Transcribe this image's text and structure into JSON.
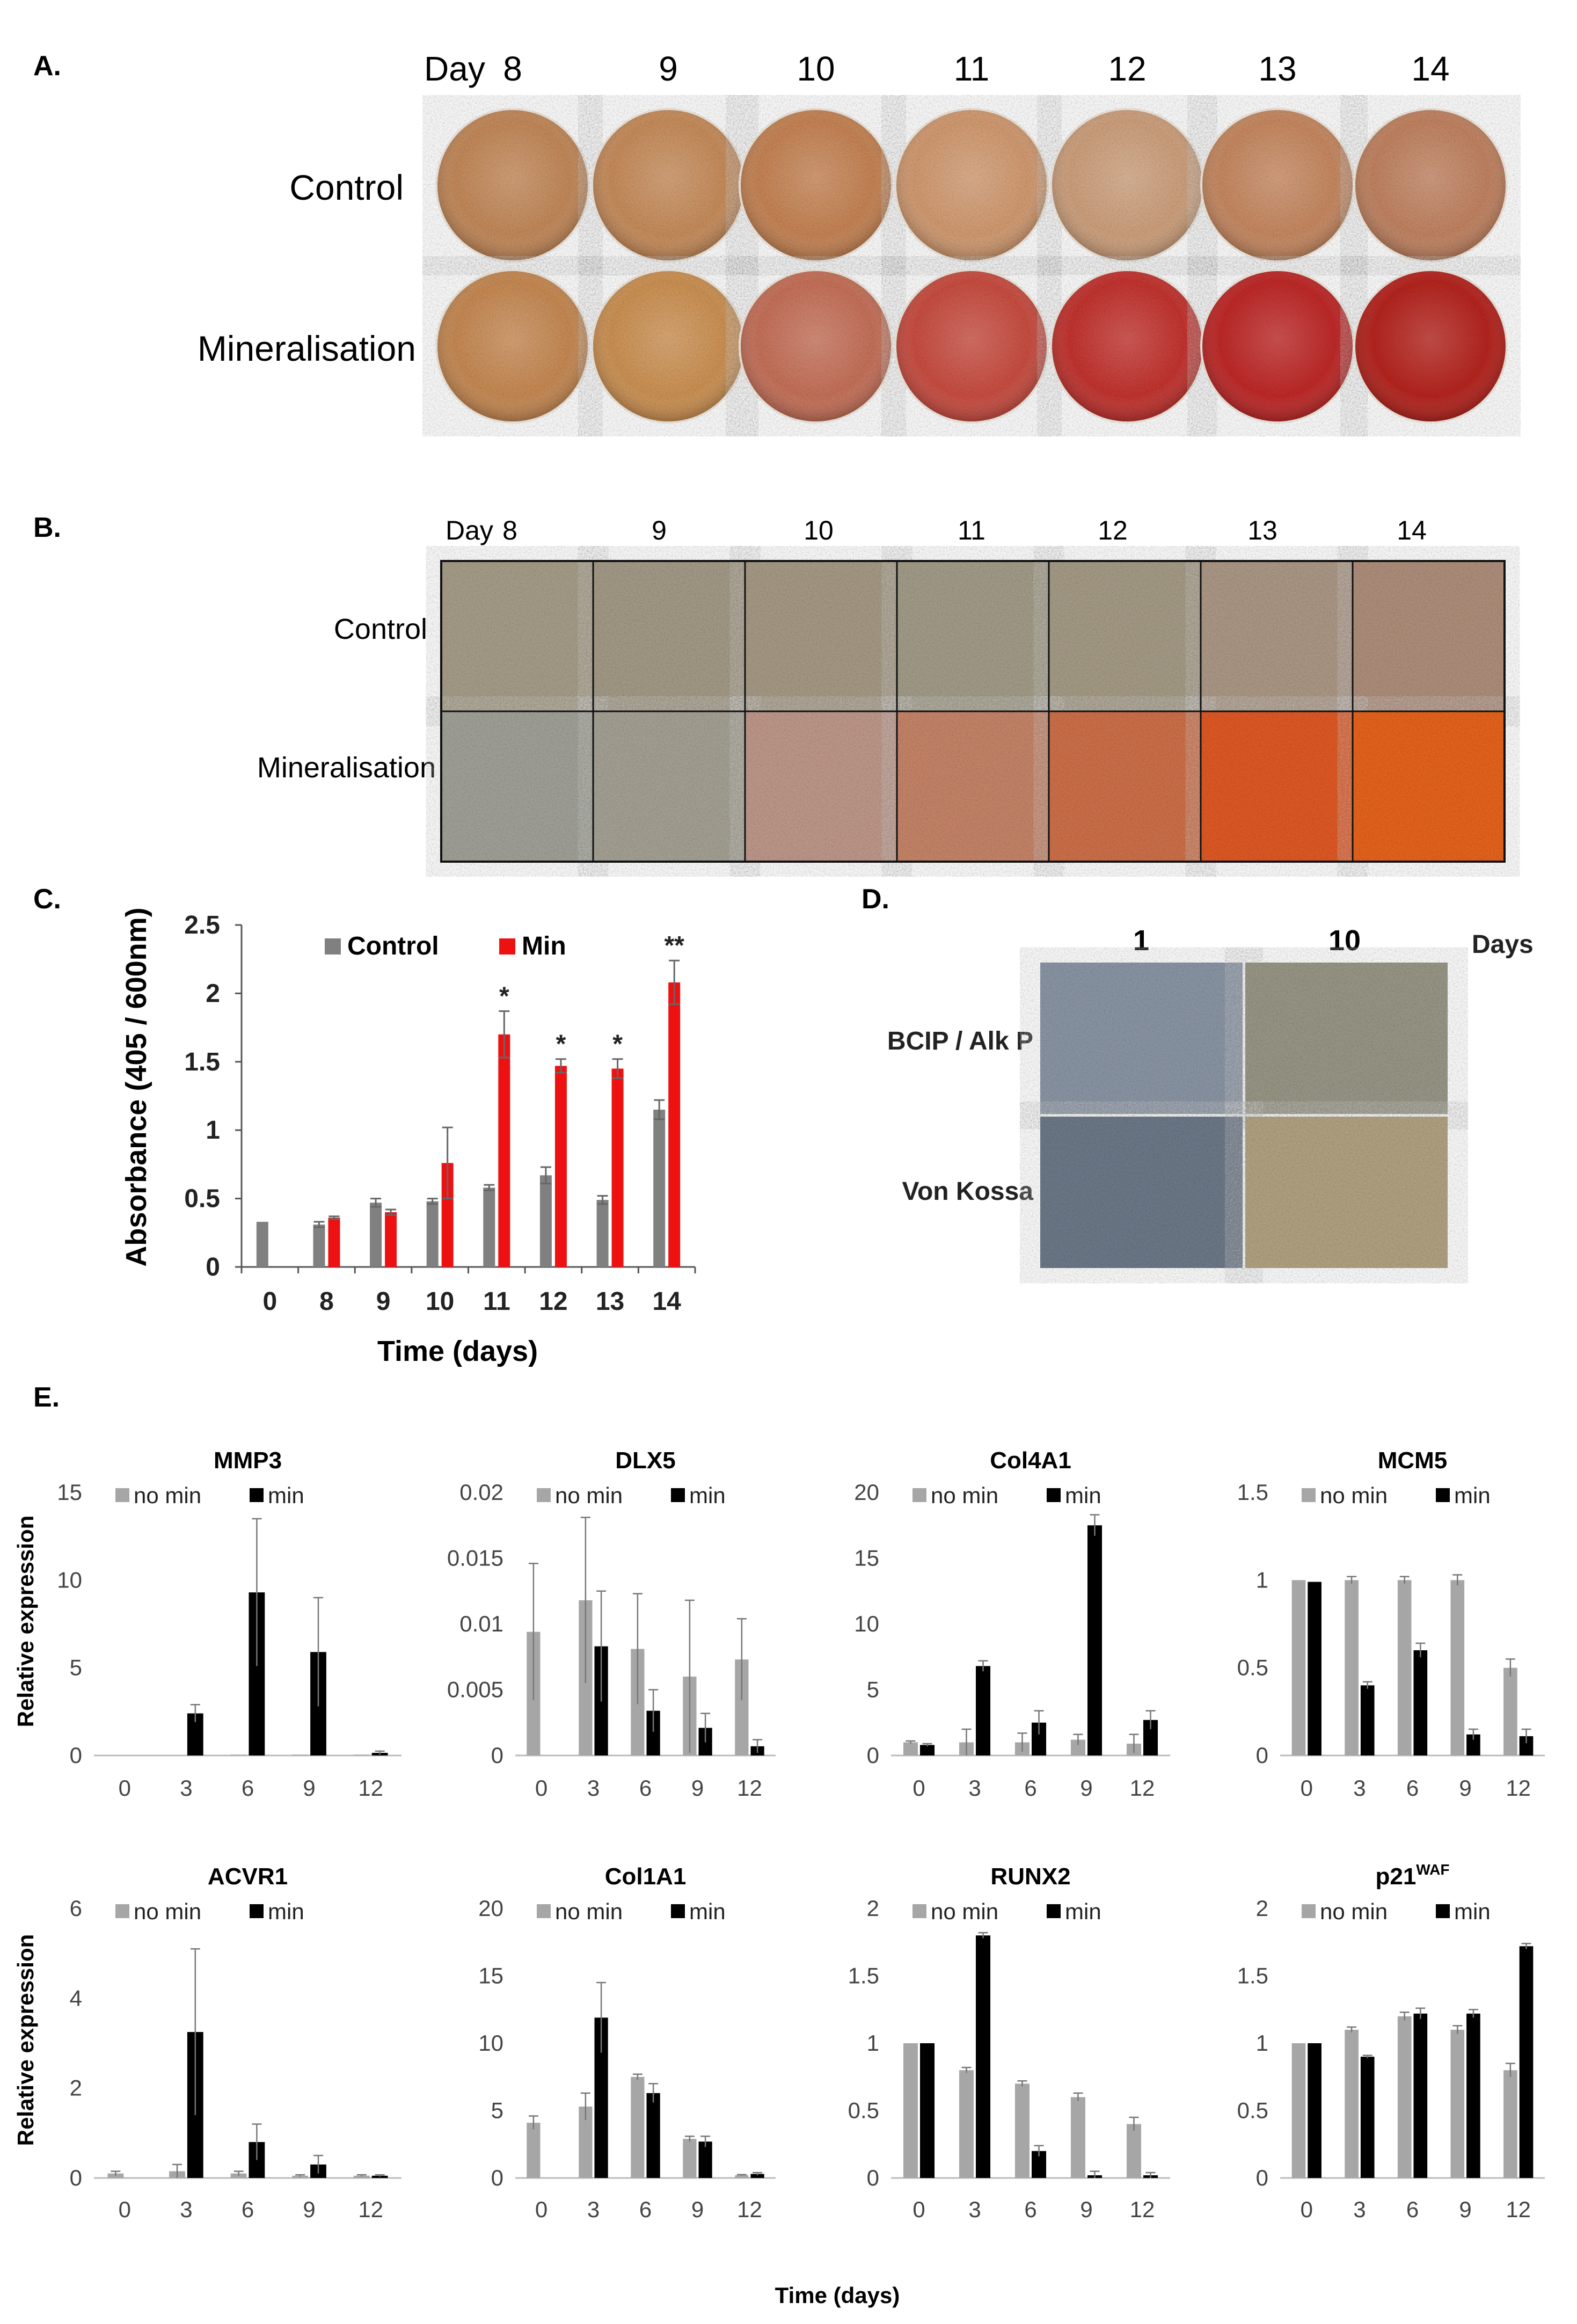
{
  "panel_a": {
    "letter": "A.",
    "day_prefix": "Day",
    "days": [
      "8",
      "9",
      "10",
      "11",
      "12",
      "13",
      "14"
    ],
    "rows": [
      "Control",
      "Mineralisation"
    ],
    "colors": {
      "Control": [
        "#c58a5a",
        "#c98e5c",
        "#c88555",
        "#d49c72",
        "#d0a27e",
        "#c98a62",
        "#c38462"
      ],
      "Mineralisation": [
        "#c98b54",
        "#cf9354",
        "#c8725a",
        "#cb4e42",
        "#c53430",
        "#c12a28",
        "#b82420"
      ]
    }
  },
  "panel_b": {
    "letter": "B.",
    "day_prefix": "Day",
    "days": [
      "8",
      "9",
      "10",
      "11",
      "12",
      "13",
      "14"
    ],
    "rows": [
      "Control",
      "Mineralisation"
    ],
    "colors": {
      "Control": [
        "#a89f8a",
        "#a59c88",
        "#a89c86",
        "#a49e8a",
        "#a79d88",
        "#ae9a88",
        "#b0907c"
      ],
      "Mineralisation": [
        "#a3a39a",
        "#a7a396",
        "#c09a8c",
        "#c8866a",
        "#d0714a",
        "#e25a26",
        "#e8651c"
      ]
    }
  },
  "panel_d": {
    "letter": "D.",
    "columns": [
      "1",
      "10"
    ],
    "days_label": "Days",
    "rows": [
      "BCIP / Alk P",
      "Von Kossa"
    ],
    "colors": [
      [
        "#8c97a6",
        "#9a9887"
      ],
      [
        "#6e7a8a",
        "#b3a483"
      ]
    ]
  },
  "chart_data": [
    {
      "id": "C",
      "letter": "C.",
      "type": "bar",
      "title": "",
      "xlabel": "Time (days)",
      "ylabel": "Absorbance (405 / 600nm)",
      "ylim": [
        0,
        2.5
      ],
      "yticks": [
        "0",
        "0.5",
        "1",
        "1.5",
        "2",
        "2.5"
      ],
      "categories": [
        "0",
        "8",
        "9",
        "10",
        "11",
        "12",
        "13",
        "14"
      ],
      "legend_position": "top",
      "significance": [
        "",
        "",
        "",
        "",
        "*",
        "*",
        "*",
        "**"
      ],
      "series": [
        {
          "name": "Control",
          "color": "#808080",
          "values": [
            0.33,
            0.31,
            0.47,
            0.48,
            0.58,
            0.67,
            0.49,
            1.15
          ],
          "errors": [
            0.0,
            0.02,
            0.03,
            0.02,
            0.02,
            0.06,
            0.03,
            0.07
          ]
        },
        {
          "name": "Min",
          "color": "#ee1111",
          "values": [
            null,
            0.36,
            0.4,
            0.76,
            1.7,
            1.47,
            1.45,
            2.08
          ],
          "errors": [
            0,
            0.01,
            0.02,
            0.26,
            0.17,
            0.05,
            0.07,
            0.16
          ]
        }
      ]
    },
    {
      "id": "E",
      "letter": "E.",
      "xlabel": "Time (days)",
      "ylabel": "Relative expression",
      "categories": [
        "0",
        "3",
        "6",
        "9",
        "12"
      ],
      "series_names": [
        "no min",
        "min"
      ],
      "colors": [
        "#a6a6a6",
        "#000000"
      ],
      "subplots": [
        {
          "type": "bar",
          "title": "MMP3",
          "title_sup": "",
          "ylim": [
            0,
            15
          ],
          "yticks": [
            "0",
            "5",
            "10",
            "15"
          ],
          "values": [
            [
              0,
              0,
              0.05,
              0.05,
              0.05
            ],
            [
              0,
              2.4,
              9.3,
              5.9,
              0.15
            ]
          ],
          "errors": [
            [
              0,
              0,
              0,
              0,
              0
            ],
            [
              0,
              0.5,
              4.2,
              3.1,
              0.1
            ]
          ]
        },
        {
          "type": "bar",
          "title": "DLX5",
          "title_sup": "",
          "ylim": [
            0,
            0.02
          ],
          "yticks": [
            "0",
            "0.005",
            "0.01",
            "0.015",
            "0.02"
          ],
          "values": [
            [
              0.0094,
              0.0118,
              0.0081,
              0.006,
              0.0073
            ],
            [
              0,
              0.0083,
              0.0034,
              0.0021,
              0.0007
            ]
          ],
          "errors": [
            [
              0.0052,
              0.0063,
              0.0042,
              0.0058,
              0.0031
            ],
            [
              0,
              0.0042,
              0.0016,
              0.0011,
              0.0005
            ]
          ]
        },
        {
          "type": "bar",
          "title": "Col4A1",
          "title_sup": "",
          "ylim": [
            0,
            20
          ],
          "yticks": [
            "0",
            "5",
            "10",
            "15",
            "20"
          ],
          "values": [
            [
              1.0,
              1.0,
              1.0,
              1.2,
              0.9
            ],
            [
              0.8,
              6.8,
              2.5,
              17.5,
              2.7
            ]
          ],
          "errors": [
            [
              0.1,
              1.0,
              0.7,
              0.4,
              0.7
            ],
            [
              0.1,
              0.4,
              0.9,
              0.8,
              0.7
            ]
          ]
        },
        {
          "type": "bar",
          "title": "MCM5",
          "title_sup": "",
          "ylim": [
            0,
            1.5
          ],
          "yticks": [
            "0",
            "0.5",
            "1",
            "1.5"
          ],
          "values": [
            [
              1.0,
              1.0,
              1.0,
              1.0,
              0.5
            ],
            [
              0.99,
              0.4,
              0.6,
              0.12,
              0.11
            ]
          ],
          "errors": [
            [
              0,
              0.02,
              0.02,
              0.03,
              0.05
            ],
            [
              0,
              0.02,
              0.04,
              0.03,
              0.04
            ]
          ]
        },
        {
          "type": "bar",
          "title": "ACVR1",
          "title_sup": "",
          "ylim": [
            0,
            6
          ],
          "yticks": [
            "0",
            "2",
            "4",
            "6"
          ],
          "values": [
            [
              0.1,
              0.15,
              0.1,
              0.05,
              0.05
            ],
            [
              0,
              3.25,
              0.8,
              0.3,
              0.05
            ]
          ],
          "errors": [
            [
              0.05,
              0.15,
              0.05,
              0.02,
              0.02
            ],
            [
              0,
              1.85,
              0.4,
              0.2,
              0.02
            ]
          ]
        },
        {
          "type": "bar",
          "title": "Col1A1",
          "title_sup": "",
          "ylim": [
            0,
            20
          ],
          "yticks": [
            "0",
            "5",
            "10",
            "15",
            "20"
          ],
          "values": [
            [
              4.1,
              5.3,
              7.5,
              2.9,
              0.2
            ],
            [
              0,
              11.9,
              6.3,
              2.7,
              0.3
            ]
          ],
          "errors": [
            [
              0.5,
              1.0,
              0.2,
              0.2,
              0.05
            ],
            [
              0,
              2.6,
              0.7,
              0.4,
              0.1
            ]
          ]
        },
        {
          "type": "bar",
          "title": "RUNX2",
          "title_sup": "",
          "ylim": [
            0,
            2
          ],
          "yticks": [
            "0",
            "0.5",
            "1",
            "1.5",
            "2"
          ],
          "values": [
            [
              1.0,
              0.8,
              0.7,
              0.6,
              0.4
            ],
            [
              1.0,
              1.8,
              0.2,
              0.02,
              0.02
            ]
          ],
          "errors": [
            [
              0,
              0.02,
              0.02,
              0.03,
              0.05
            ],
            [
              0,
              0.02,
              0.04,
              0.03,
              0.02
            ]
          ]
        },
        {
          "type": "bar",
          "title": "p21",
          "title_sup": "WAF",
          "ylim": [
            0,
            2
          ],
          "yticks": [
            "0",
            "0.5",
            "1",
            "1.5",
            "2"
          ],
          "values": [
            [
              1.0,
              1.1,
              1.2,
              1.1,
              0.8
            ],
            [
              1.0,
              0.9,
              1.22,
              1.22,
              1.72
            ]
          ],
          "errors": [
            [
              0,
              0.02,
              0.03,
              0.03,
              0.05
            ],
            [
              0,
              0.01,
              0.04,
              0.03,
              0.02
            ]
          ]
        }
      ]
    }
  ]
}
